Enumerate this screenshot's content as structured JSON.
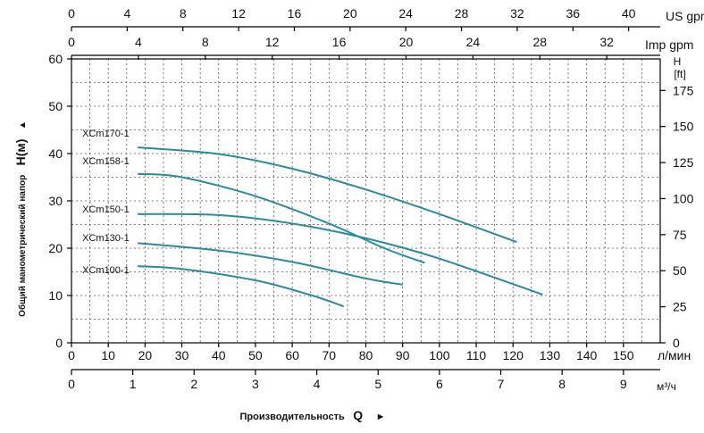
{
  "chart_data": {
    "type": "line",
    "title": "",
    "ylabel": "Общий манометрический напор",
    "ylabel_symbol": "H(м)",
    "ylabel_arrow": "▲",
    "xlabel": "Производительность",
    "xlabel_symbol": "Q",
    "xlabel_arrow": "►",
    "x_unit": "л/мин",
    "xlim": [
      0,
      160
    ],
    "ylim": [
      0,
      60
    ],
    "grid": true,
    "axes": {
      "us_gpm": {
        "unit": "US gpm",
        "ticks": [
          "0",
          "4",
          "8",
          "12",
          "16",
          "20",
          "24",
          "28",
          "32",
          "36",
          "40"
        ],
        "per_lpm": 0.264172
      },
      "imp_gpm": {
        "unit": "Imp gpm",
        "ticks": [
          "0",
          "4",
          "8",
          "12",
          "16",
          "20",
          "24",
          "28",
          "32"
        ],
        "per_lpm": 0.219969
      },
      "lpm": {
        "unit": "л/мин",
        "ticks": [
          "0",
          "10",
          "20",
          "30",
          "40",
          "50",
          "60",
          "70",
          "80",
          "90",
          "100",
          "110",
          "120",
          "130",
          "140",
          "150"
        ]
      },
      "m3h": {
        "unit": "м³/ч",
        "ticks": [
          "0",
          "1",
          "2",
          "3",
          "4",
          "5",
          "6",
          "7",
          "8",
          "9"
        ],
        "per_lpm": 0.06
      },
      "head_m": {
        "ticks": [
          "0",
          "10",
          "20",
          "30",
          "40",
          "50",
          "60"
        ]
      },
      "head_ft": {
        "unit_line1": "H",
        "unit_line2": "[ft]",
        "ticks": [
          "0",
          "25",
          "50",
          "75",
          "100",
          "125",
          "150",
          "175"
        ],
        "per_m": 3.28084
      }
    },
    "series": [
      {
        "name": "XCm170-1",
        "x": [
          18,
          40,
          60,
          80,
          100,
          121
        ],
        "y": [
          41.3,
          39.9,
          36.8,
          32.4,
          27.2,
          21.3
        ]
      },
      {
        "name": "XCm158-1",
        "x": [
          18,
          30,
          50,
          70,
          85,
          96
        ],
        "y": [
          35.7,
          35.0,
          31.0,
          25.2,
          20.0,
          16.9
        ]
      },
      {
        "name": "XCm150-1",
        "x": [
          18,
          40,
          60,
          80,
          100,
          128
        ],
        "y": [
          27.2,
          27.0,
          25.2,
          22.1,
          17.8,
          10.2
        ]
      },
      {
        "name": "XCm130-1",
        "x": [
          18,
          40,
          60,
          80,
          90
        ],
        "y": [
          21.1,
          19.5,
          17.1,
          13.6,
          12.3
        ]
      },
      {
        "name": "XCm100-1",
        "x": [
          18,
          30,
          50,
          65,
          74
        ],
        "y": [
          16.2,
          15.6,
          13.2,
          10.1,
          7.7
        ]
      }
    ]
  }
}
